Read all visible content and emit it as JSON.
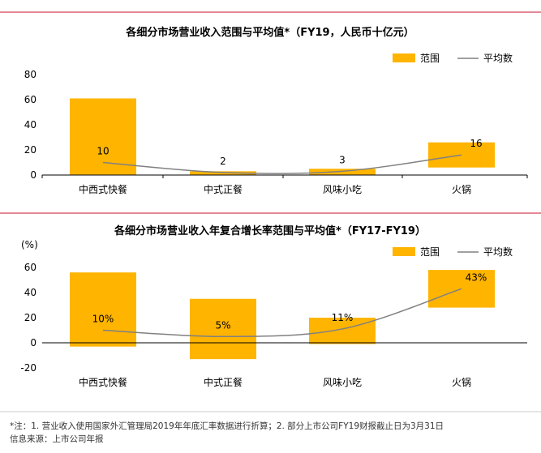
{
  "colors": {
    "range_fill": "#FFB400",
    "avg_line": "#808080",
    "divider": "#C8102E",
    "axis": "#000000"
  },
  "legend": {
    "range_label": "范围",
    "avg_label": "平均数"
  },
  "chart_data": [
    {
      "type": "bar",
      "title": "各细分市场营业收入范围与平均值*（FY19，人民币十亿元）",
      "ylabel": "",
      "ylim": [
        0,
        80
      ],
      "yticks": [
        "0",
        "20",
        "40",
        "60",
        "80"
      ],
      "categories": [
        "中西式快餐",
        "中式正餐",
        "风味小吃",
        "火锅"
      ],
      "series": [
        {
          "name": "范围",
          "kind": "floating_bar",
          "ranges": [
            [
              0,
              61
            ],
            [
              0,
              3
            ],
            [
              0,
              5
            ],
            [
              6,
              26
            ]
          ]
        },
        {
          "name": "平均数",
          "kind": "line",
          "values": [
            10,
            2,
            3,
            16
          ],
          "labels": [
            "10",
            "2",
            "3",
            "16"
          ]
        }
      ],
      "legend_position": "top-right",
      "grid": false
    },
    {
      "type": "bar",
      "title": "各细分市场营业收入年复合增长率范围与平均值*（FY17-FY19）",
      "ylabel": "(%)",
      "ylim": [
        -20,
        60
      ],
      "yticks": [
        "-20",
        "0",
        "20",
        "40",
        "60"
      ],
      "categories": [
        "中西式快餐",
        "中式正餐",
        "风味小吃",
        "火锅"
      ],
      "series": [
        {
          "name": "范围",
          "kind": "floating_bar",
          "ranges": [
            [
              -3,
              56
            ],
            [
              -13,
              35
            ],
            [
              -1,
              20
            ],
            [
              28,
              58
            ]
          ]
        },
        {
          "name": "平均数",
          "kind": "line",
          "values": [
            10,
            5,
            11,
            43
          ],
          "labels": [
            "10%",
            "5%",
            "11%",
            "43%"
          ]
        }
      ],
      "legend_position": "top-right",
      "grid": false
    }
  ],
  "footnotes": {
    "note": "*注：1. 营业收入使用国家外汇管理局2019年年底汇率数据进行折算；2. 部分上市公司FY19财报截止日为3月31日",
    "source": "信息来源：上市公司年报"
  }
}
